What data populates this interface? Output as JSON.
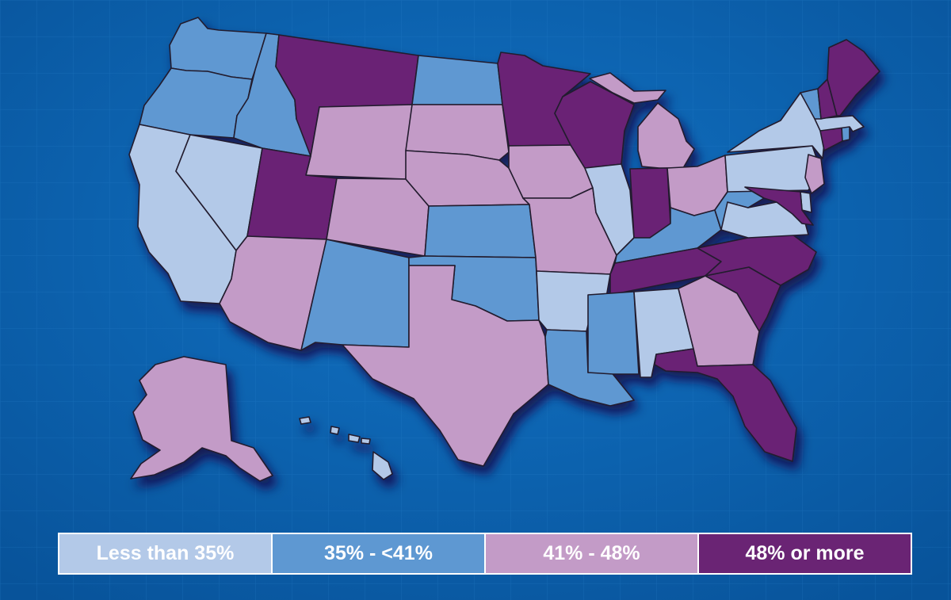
{
  "colors": {
    "background": "#0a63b0",
    "low": "#b3c9e8",
    "mid_low": "#5e98d2",
    "mid_high": "#c39bc7",
    "high": "#6a2474"
  },
  "legend": [
    {
      "label": "Less than 35%",
      "color": "#b3c9e8"
    },
    {
      "label": "35% - <41%",
      "color": "#5e98d2"
    },
    {
      "label": "41% - 48%",
      "color": "#c39bc7"
    },
    {
      "label": "48% or more",
      "color": "#6a2474"
    }
  ],
  "states": [
    {
      "code": "WA",
      "name": "Washington",
      "category": "35% - <41%"
    },
    {
      "code": "OR",
      "name": "Oregon",
      "category": "35% - <41%"
    },
    {
      "code": "CA",
      "name": "California",
      "category": "Less than 35%"
    },
    {
      "code": "NV",
      "name": "Nevada",
      "category": "Less than 35%"
    },
    {
      "code": "ID",
      "name": "Idaho",
      "category": "35% - <41%"
    },
    {
      "code": "MT",
      "name": "Montana",
      "category": "48% or more"
    },
    {
      "code": "WY",
      "name": "Wyoming",
      "category": "41% - 48%"
    },
    {
      "code": "UT",
      "name": "Utah",
      "category": "48% or more"
    },
    {
      "code": "AZ",
      "name": "Arizona",
      "category": "41% - 48%"
    },
    {
      "code": "CO",
      "name": "Colorado",
      "category": "41% - 48%"
    },
    {
      "code": "NM",
      "name": "New Mexico",
      "category": "35% - <41%"
    },
    {
      "code": "ND",
      "name": "North Dakota",
      "category": "35% - <41%"
    },
    {
      "code": "SD",
      "name": "South Dakota",
      "category": "41% - 48%"
    },
    {
      "code": "NE",
      "name": "Nebraska",
      "category": "41% - 48%"
    },
    {
      "code": "KS",
      "name": "Kansas",
      "category": "35% - <41%"
    },
    {
      "code": "OK",
      "name": "Oklahoma",
      "category": "35% - <41%"
    },
    {
      "code": "TX",
      "name": "Texas",
      "category": "41% - 48%"
    },
    {
      "code": "MN",
      "name": "Minnesota",
      "category": "48% or more"
    },
    {
      "code": "IA",
      "name": "Iowa",
      "category": "41% - 48%"
    },
    {
      "code": "MO",
      "name": "Missouri",
      "category": "41% - 48%"
    },
    {
      "code": "AR",
      "name": "Arkansas",
      "category": "Less than 35%"
    },
    {
      "code": "LA",
      "name": "Louisiana",
      "category": "35% - <41%"
    },
    {
      "code": "WI",
      "name": "Wisconsin",
      "category": "48% or more"
    },
    {
      "code": "IL",
      "name": "Illinois",
      "category": "Less than 35%"
    },
    {
      "code": "MI",
      "name": "Michigan",
      "category": "41% - 48%"
    },
    {
      "code": "IN",
      "name": "Indiana",
      "category": "48% or more"
    },
    {
      "code": "OH",
      "name": "Ohio",
      "category": "41% - 48%"
    },
    {
      "code": "KY",
      "name": "Kentucky",
      "category": "35% - <41%"
    },
    {
      "code": "TN",
      "name": "Tennessee",
      "category": "48% or more"
    },
    {
      "code": "MS",
      "name": "Mississippi",
      "category": "35% - <41%"
    },
    {
      "code": "AL",
      "name": "Alabama",
      "category": "Less than 35%"
    },
    {
      "code": "GA",
      "name": "Georgia",
      "category": "41% - 48%"
    },
    {
      "code": "FL",
      "name": "Florida",
      "category": "48% or more"
    },
    {
      "code": "SC",
      "name": "South Carolina",
      "category": "48% or more"
    },
    {
      "code": "NC",
      "name": "North Carolina",
      "category": "48% or more"
    },
    {
      "code": "VA",
      "name": "Virginia",
      "category": "Less than 35%"
    },
    {
      "code": "WV",
      "name": "West Virginia",
      "category": "35% - <41%"
    },
    {
      "code": "PA",
      "name": "Pennsylvania",
      "category": "Less than 35%"
    },
    {
      "code": "NY",
      "name": "New York",
      "category": "Less than 35%"
    },
    {
      "code": "NJ",
      "name": "New Jersey",
      "category": "41% - 48%"
    },
    {
      "code": "DE",
      "name": "Delaware",
      "category": "Less than 35%"
    },
    {
      "code": "MD",
      "name": "Maryland",
      "category": "48% or more"
    },
    {
      "code": "CT",
      "name": "Connecticut",
      "category": "48% or more"
    },
    {
      "code": "RI",
      "name": "Rhode Island",
      "category": "35% - <41%"
    },
    {
      "code": "MA",
      "name": "Massachusetts",
      "category": "Less than 35%"
    },
    {
      "code": "VT",
      "name": "Vermont",
      "category": "35% - <41%"
    },
    {
      "code": "NH",
      "name": "New Hampshire",
      "category": "48% or more"
    },
    {
      "code": "ME",
      "name": "Maine",
      "category": "48% or more"
    },
    {
      "code": "AK",
      "name": "Alaska",
      "category": "41% - 48%"
    },
    {
      "code": "HI",
      "name": "Hawaii",
      "category": "Less than 35%"
    }
  ]
}
